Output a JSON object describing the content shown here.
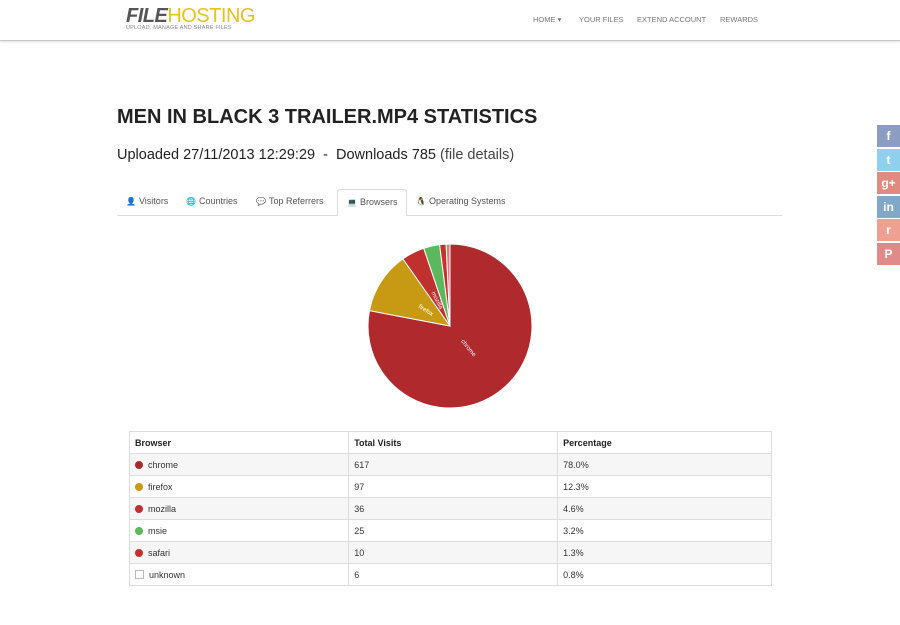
{
  "header": {
    "logo_bold": "FILE",
    "logo_light": "HOSTING",
    "tagline": "UPLOAD, MANAGE AND SHARE FILES",
    "nav": [
      "HOME",
      "YOUR FILES",
      "EXTEND ACCOUNT",
      "REWARDS"
    ]
  },
  "page": {
    "title": "MEN IN BLACK 3 TRAILER.MP4 STATISTICS",
    "summary": "Uploaded 27/11/2013 12:29:29  -  Downloads 785",
    "details_link": "(file details)"
  },
  "tabs": {
    "items": [
      "Visitors",
      "Countries",
      "Top Referrers",
      "Browsers",
      "Operating Systems"
    ],
    "active": 3
  },
  "pie": {
    "colors": [
      "#b0292d",
      "#c89a14",
      "#c0302f",
      "#5cb85c",
      "#c9302c",
      "#e07b85"
    ],
    "label_color": "#ffffff"
  },
  "table": {
    "columns": [
      "Browser",
      "Total Visits",
      "Percentage"
    ],
    "rows": [
      [
        "chrome",
        617,
        "78.0%"
      ],
      [
        "firefox",
        97,
        "12.3%"
      ],
      [
        "mozilla",
        36,
        "4.6%"
      ],
      [
        "msie",
        25,
        "3.2%"
      ],
      [
        "safari",
        10,
        "1.3%"
      ],
      [
        "unknown",
        6,
        "0.8%"
      ]
    ]
  },
  "share_buttons": [
    "f",
    "t",
    "g+",
    "in",
    "r",
    "P"
  ]
}
